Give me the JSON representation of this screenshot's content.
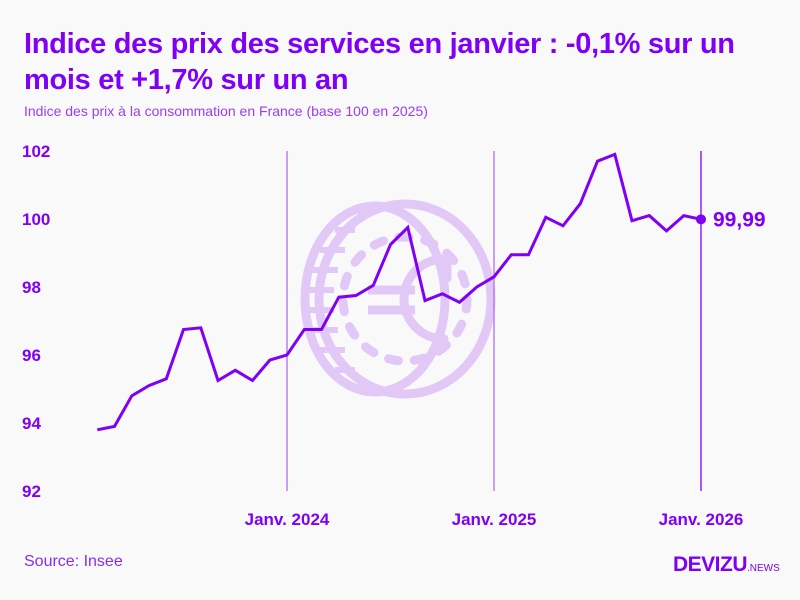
{
  "title": "Indice des prix des services en janvier : -0,1% sur un mois et +1,7% sur un an",
  "subtitle": "Indice des prix à la consommation en France (base 100 en 2025)",
  "source": "Source: Insee",
  "logo": {
    "main": "DEVIZU",
    "suffix": ".NEWS"
  },
  "colors": {
    "accent": "#7f00f5",
    "watermark": "#e2c8f7",
    "gridline": "#b36bf5"
  },
  "watermark_icon": "euro-coin-icon",
  "chart_data": {
    "type": "line",
    "title": "Indice des prix des services en janvier : -0,1% sur un mois et +1,7% sur un an",
    "ylim": [
      92,
      102
    ],
    "yticks": [
      "92",
      "94",
      "96",
      "98",
      "100",
      "102"
    ],
    "xtick_labels": [
      {
        "x": "2024-01",
        "label": "Janv. 2024"
      },
      {
        "x": "2025-01",
        "label": "Janv. 2025"
      },
      {
        "x": "2026-01",
        "label": "Janv. 2026"
      }
    ],
    "x": [
      "2023-02",
      "2023-03",
      "2023-04",
      "2023-05",
      "2023-06",
      "2023-07",
      "2023-08",
      "2023-09",
      "2023-10",
      "2023-11",
      "2023-12",
      "2024-01",
      "2024-02",
      "2024-03",
      "2024-04",
      "2024-05",
      "2024-06",
      "2024-07",
      "2024-08",
      "2024-09",
      "2024-10",
      "2024-11",
      "2024-12",
      "2025-01",
      "2025-02",
      "2025-03",
      "2025-04",
      "2025-05",
      "2025-06",
      "2025-07",
      "2025-08",
      "2025-09",
      "2025-10",
      "2025-11",
      "2025-12",
      "2026-01"
    ],
    "values": [
      93.8,
      93.9,
      94.8,
      95.1,
      95.3,
      96.75,
      96.8,
      95.25,
      95.55,
      95.25,
      95.85,
      96.0,
      96.75,
      96.75,
      97.7,
      97.75,
      98.05,
      99.25,
      99.75,
      97.6,
      97.8,
      97.55,
      98.0,
      98.3,
      98.95,
      98.95,
      100.05,
      99.8,
      100.45,
      101.7,
      101.9,
      99.95,
      100.1,
      99.65,
      100.1,
      99.99
    ],
    "last_value_label": "99,99",
    "grid": false,
    "legend": "none"
  }
}
